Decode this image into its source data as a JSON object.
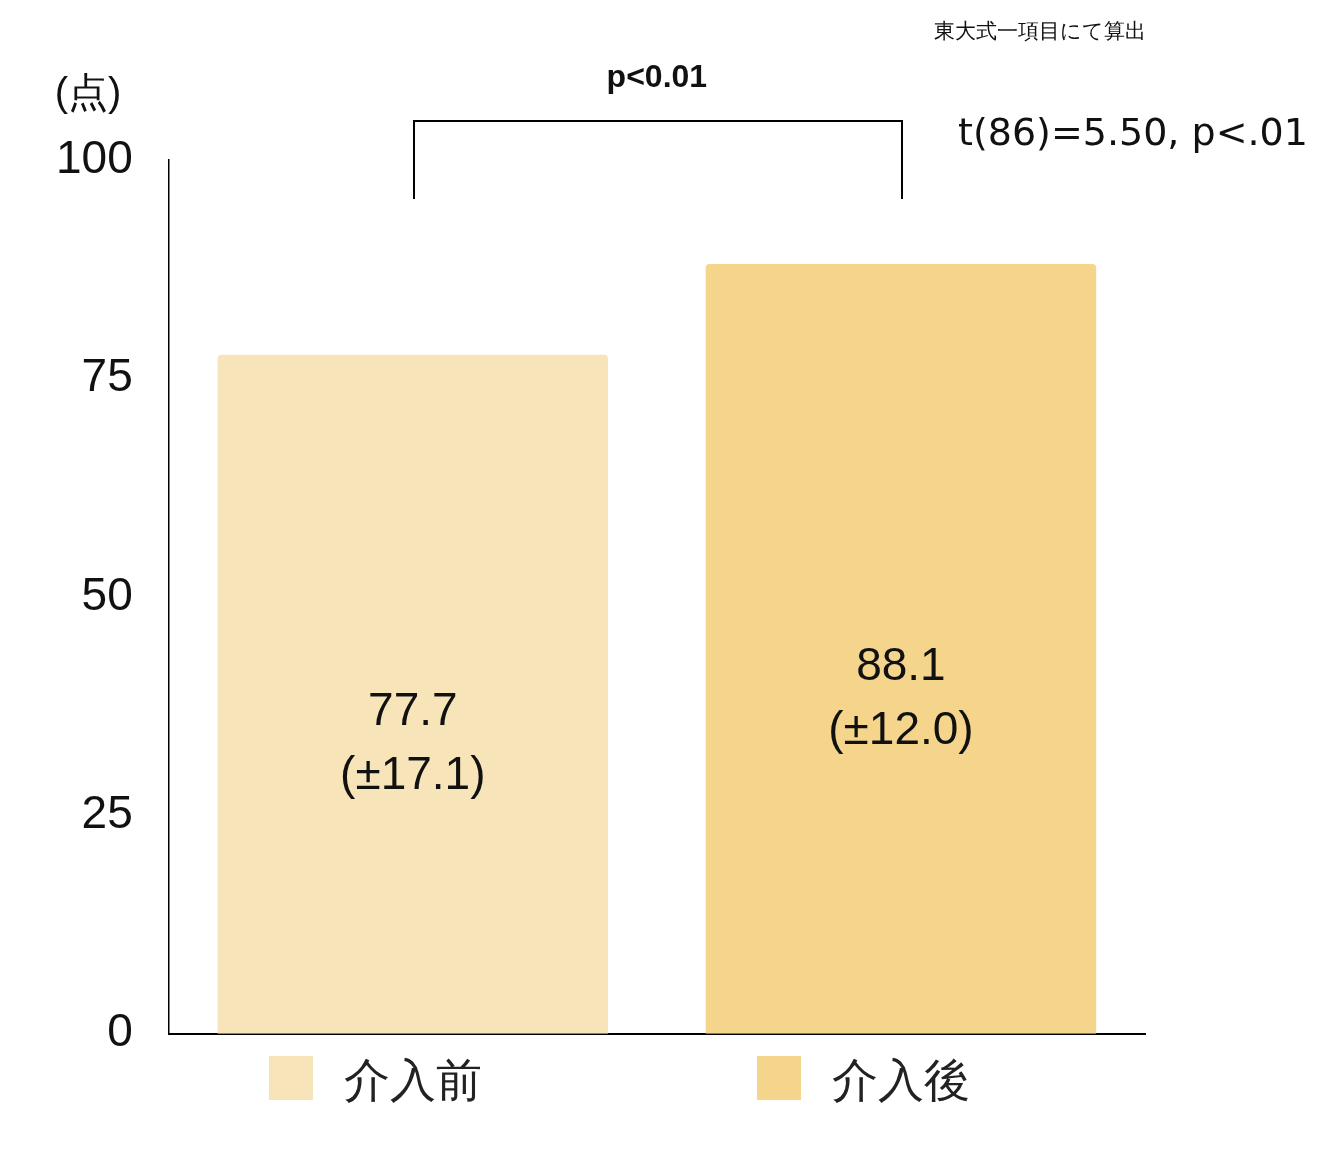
{
  "chart_data": {
    "type": "bar",
    "ylabel": "(点)",
    "categories": [
      "介入前",
      "介入後"
    ],
    "values": [
      77.7,
      88.1
    ],
    "colors": [
      "#f7e5b9",
      "#f5d58b"
    ],
    "value_labels": [
      "77.7\n(±17.1)",
      "88.1\n(±12.0)"
    ],
    "ylim": [
      0,
      100
    ],
    "yticks": [
      0,
      25,
      50,
      75,
      100
    ],
    "grid": false,
    "annotations": [
      "東大式一項目にて算出",
      "t(86)=5.50, p<.01",
      "p<0.01"
    ]
  }
}
